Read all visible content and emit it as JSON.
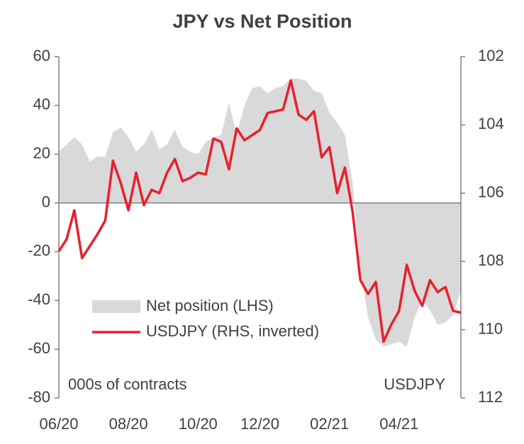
{
  "chart_data": {
    "type": "area_line",
    "title": "JPY vs Net Position",
    "categories": [
      "06/20",
      null,
      null,
      null,
      null,
      null,
      null,
      null,
      null,
      "08/20",
      null,
      null,
      null,
      null,
      null,
      null,
      null,
      null,
      "10/20",
      null,
      null,
      null,
      null,
      null,
      null,
      null,
      "12/20",
      null,
      null,
      null,
      null,
      null,
      null,
      null,
      null,
      "02/21",
      null,
      null,
      null,
      null,
      null,
      null,
      null,
      null,
      "04/21",
      null,
      null,
      null,
      null,
      null,
      null,
      null,
      null
    ],
    "series": [
      {
        "name": "Net position (LHS)",
        "color": "#d9d9d9",
        "axis": "y",
        "values": [
          21,
          24,
          27,
          24,
          17,
          19,
          19,
          29,
          31,
          27,
          21,
          24,
          30,
          22,
          24,
          30,
          23,
          21,
          20,
          25,
          27,
          28,
          41,
          28,
          40,
          47,
          48,
          45,
          47,
          48,
          51,
          51,
          50,
          46,
          45,
          37,
          33,
          28,
          8,
          -27,
          -47,
          -56,
          -59,
          -58,
          -57,
          -59,
          -47,
          -40,
          -44,
          -50,
          -49,
          -46,
          -36
        ]
      },
      {
        "name": "USDJPY (RHS, inverted)",
        "color": "#e8202e",
        "axis": "y2",
        "values": [
          107.7,
          107.35,
          106.5,
          107.9,
          107.55,
          107.2,
          106.8,
          105.05,
          105.7,
          106.5,
          105.4,
          106.35,
          105.9,
          106.0,
          105.4,
          105.0,
          105.65,
          105.55,
          105.4,
          105.45,
          104.4,
          104.5,
          105.3,
          104.1,
          104.45,
          104.3,
          104.15,
          103.65,
          103.6,
          103.55,
          102.7,
          103.7,
          103.85,
          103.6,
          104.95,
          104.65,
          106.0,
          105.25,
          106.55,
          108.55,
          108.95,
          108.6,
          110.35,
          109.85,
          109.45,
          108.1,
          108.85,
          109.3,
          108.55,
          108.9,
          108.75,
          109.45,
          109.5
        ]
      }
    ],
    "ylim": [
      -80,
      60
    ],
    "yticks": [
      -80,
      -60,
      -40,
      -20,
      0,
      20,
      40,
      60
    ],
    "y2lim": [
      102,
      112
    ],
    "y2ticks": [
      102,
      104,
      106,
      108,
      110,
      112
    ],
    "y2_inverted": true,
    "annotations": [
      "000s of contracts",
      "USDJPY"
    ]
  }
}
